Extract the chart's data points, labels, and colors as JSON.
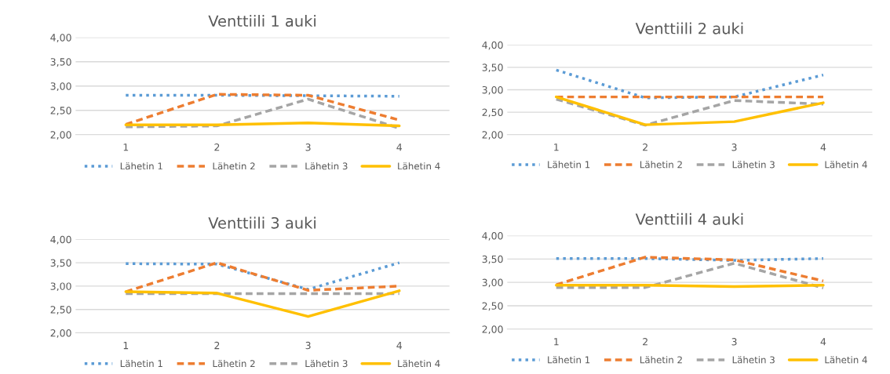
{
  "chart_data": [
    {
      "type": "line",
      "title": "Venttiili 1 auki",
      "categories": [
        "1",
        "2",
        "3",
        "4"
      ],
      "ylim": [
        2,
        4
      ],
      "yticks": [
        {
          "value": 2,
          "label": "2,00"
        },
        {
          "value": 2.5,
          "label": "2,50"
        },
        {
          "value": 3,
          "label": "3,00"
        },
        {
          "value": 3.5,
          "label": "3,50"
        },
        {
          "value": 4,
          "label": "4,00"
        }
      ],
      "grid": "y",
      "legend": "bottom",
      "series": [
        {
          "name": "Lähetin 1",
          "color": "#5b9bd5",
          "line_style": "dotted",
          "values": [
            2.81,
            2.81,
            2.8,
            2.79
          ]
        },
        {
          "name": "Lähetin 2",
          "color": "#ed7d31",
          "line_style": "dashed",
          "values": [
            2.21,
            2.83,
            2.81,
            2.3
          ]
        },
        {
          "name": "Lähetin 3",
          "color": "#a5a5a5",
          "line_style": "dashed",
          "values": [
            2.16,
            2.18,
            2.73,
            2.13
          ]
        },
        {
          "name": "Lähetin 4",
          "color": "#ffc000",
          "line_style": "solid",
          "values": [
            2.2,
            2.2,
            2.24,
            2.18
          ]
        }
      ]
    },
    {
      "type": "line",
      "title": "Venttiili 2 auki",
      "categories": [
        "1",
        "2",
        "3",
        "4"
      ],
      "ylim": [
        2,
        4
      ],
      "yticks": [
        {
          "value": 2,
          "label": "2,00"
        },
        {
          "value": 2.5,
          "label": "2,50"
        },
        {
          "value": 3,
          "label": "3,00"
        },
        {
          "value": 3.5,
          "label": "3,50"
        },
        {
          "value": 4,
          "label": "4,00"
        }
      ],
      "grid": "y",
      "legend": "bottom",
      "series": [
        {
          "name": "Lähetin 1",
          "color": "#5b9bd5",
          "line_style": "dotted",
          "values": [
            3.44,
            2.82,
            2.84,
            3.33
          ]
        },
        {
          "name": "Lähetin 2",
          "color": "#ed7d31",
          "line_style": "dashed",
          "values": [
            2.84,
            2.84,
            2.84,
            2.84
          ]
        },
        {
          "name": "Lähetin 3",
          "color": "#a5a5a5",
          "line_style": "dashed",
          "values": [
            2.79,
            2.21,
            2.76,
            2.68
          ]
        },
        {
          "name": "Lähetin 4",
          "color": "#ffc000",
          "line_style": "solid",
          "values": [
            2.84,
            2.22,
            2.29,
            2.71
          ]
        }
      ]
    },
    {
      "type": "line",
      "title": "Venttiili 3 auki",
      "categories": [
        "1",
        "2",
        "3",
        "4"
      ],
      "ylim": [
        2,
        4
      ],
      "yticks": [
        {
          "value": 2,
          "label": "2,00"
        },
        {
          "value": 2.5,
          "label": "2,50"
        },
        {
          "value": 3,
          "label": "3,00"
        },
        {
          "value": 3.5,
          "label": "3,50"
        },
        {
          "value": 4,
          "label": "4,00"
        }
      ],
      "grid": "y",
      "legend": "bottom",
      "series": [
        {
          "name": "Lähetin 1",
          "color": "#5b9bd5",
          "line_style": "dotted",
          "values": [
            3.48,
            3.47,
            2.93,
            3.5
          ]
        },
        {
          "name": "Lähetin 2",
          "color": "#ed7d31",
          "line_style": "dashed",
          "values": [
            2.88,
            3.5,
            2.91,
            3.0
          ]
        },
        {
          "name": "Lähetin 3",
          "color": "#a5a5a5",
          "line_style": "dashed",
          "values": [
            2.84,
            2.84,
            2.84,
            2.84
          ]
        },
        {
          "name": "Lähetin 4",
          "color": "#ffc000",
          "line_style": "solid",
          "values": [
            2.88,
            2.85,
            2.35,
            2.9
          ]
        }
      ]
    },
    {
      "type": "line",
      "title": "Venttiili 4 auki",
      "categories": [
        "1",
        "2",
        "3",
        "4"
      ],
      "ylim": [
        2,
        4
      ],
      "yticks": [
        {
          "value": 2,
          "label": "2,00"
        },
        {
          "value": 2.5,
          "label": "2,50"
        },
        {
          "value": 3,
          "label": "3,00"
        },
        {
          "value": 3.5,
          "label": "3,50"
        },
        {
          "value": 4,
          "label": "4,00"
        }
      ],
      "grid": "y",
      "legend": "bottom",
      "series": [
        {
          "name": "Lähetin 1",
          "color": "#5b9bd5",
          "line_style": "dotted",
          "values": [
            3.51,
            3.51,
            3.47,
            3.51
          ]
        },
        {
          "name": "Lähetin 2",
          "color": "#ed7d31",
          "line_style": "dashed",
          "values": [
            2.95,
            3.54,
            3.48,
            3.03
          ]
        },
        {
          "name": "Lähetin 3",
          "color": "#a5a5a5",
          "line_style": "dashed",
          "values": [
            2.89,
            2.89,
            3.41,
            2.88
          ]
        },
        {
          "name": "Lähetin 4",
          "color": "#ffc000",
          "line_style": "solid",
          "values": [
            2.94,
            2.94,
            2.91,
            2.94
          ]
        }
      ]
    }
  ]
}
